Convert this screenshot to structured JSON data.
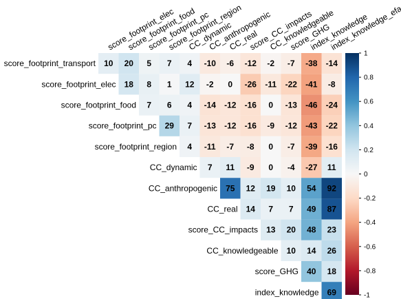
{
  "chart_data": {
    "type": "heatmap",
    "shape": "upper-triangle",
    "title": "",
    "variables": [
      "score_footprint_transport",
      "score_footprint_elec",
      "score_footprint_food",
      "score_footprint_pc",
      "score_footprint_region",
      "CC_dynamic",
      "CC_anthropogenic",
      "CC_real",
      "score_CC_impacts",
      "CC_knowledgeable",
      "score_GHG",
      "index_knowledge",
      "index_knowledge_efa"
    ],
    "col_labels": [
      "score_footprint_elec",
      "score_footprint_food",
      "score_footprint_pc",
      "score_footprint_region",
      "CC_dynamic",
      "CC_anthropogenic",
      "CC_real",
      "score_CC_impacts",
      "CC_knowledgeable",
      "score_GHG",
      "index_knowledge",
      "index_knowledge_efa"
    ],
    "row_labels": [
      "score_footprint_transport",
      "score_footprint_elec",
      "score_footprint_food",
      "score_footprint_pc",
      "score_footprint_region",
      "CC_dynamic",
      "CC_anthropogenic",
      "CC_real",
      "score_CC_impacts",
      "CC_knowledgeable",
      "score_GHG",
      "index_knowledge"
    ],
    "values": [
      [
        10,
        20,
        5,
        7,
        4,
        -10,
        -6,
        -12,
        -2,
        -7,
        -38,
        -14
      ],
      [
        18,
        8,
        1,
        12,
        -2,
        0,
        -26,
        -11,
        -22,
        -41,
        -8
      ],
      [
        7,
        6,
        4,
        -14,
        -12,
        -16,
        0,
        -13,
        -46,
        -24
      ],
      [
        29,
        7,
        -13,
        -12,
        -16,
        -9,
        -12,
        -43,
        -22
      ],
      [
        4,
        -11,
        -7,
        -8,
        0,
        -7,
        -39,
        -16
      ],
      [
        7,
        11,
        -9,
        0,
        -4,
        -27,
        11
      ],
      [
        75,
        12,
        19,
        10,
        54,
        92
      ],
      [
        14,
        7,
        7,
        49,
        87
      ],
      [
        13,
        20,
        48,
        23
      ],
      [
        10,
        14,
        26
      ],
      [
        40,
        18
      ],
      [
        69
      ]
    ],
    "value_scale": 100,
    "colorbar": {
      "range": [
        -1,
        1
      ],
      "ticks": [
        "-1",
        "-0.8",
        "-0.6",
        "-0.4",
        "-0.2",
        "0",
        "0.2",
        "0.4",
        "0.6",
        "0.8",
        "1"
      ],
      "placement": "right"
    },
    "colors": {
      "negative_end": "#67001f",
      "neutral": "#f7f7f7",
      "positive_end": "#053061"
    }
  }
}
